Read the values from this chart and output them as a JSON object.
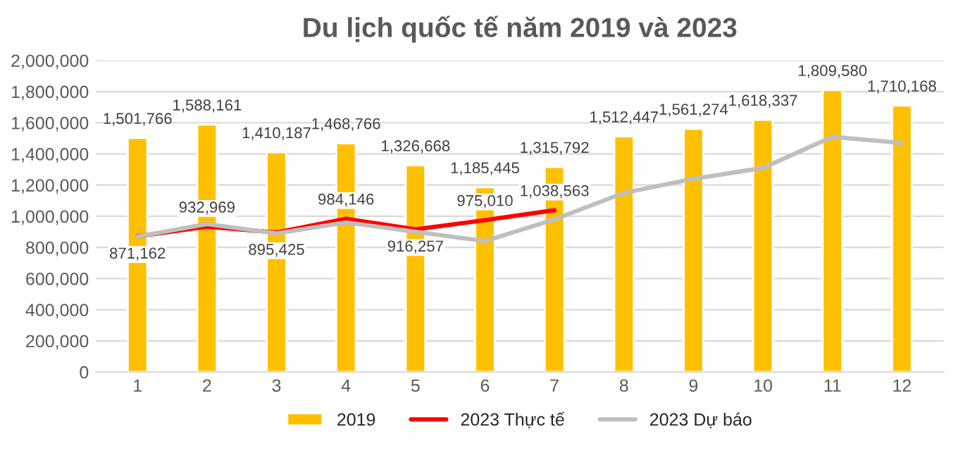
{
  "chart_data": {
    "type": "bar",
    "title": "Du lịch quốc tế năm 2019 và 2023",
    "categories": [
      "1",
      "2",
      "3",
      "4",
      "5",
      "6",
      "7",
      "8",
      "9",
      "10",
      "11",
      "12"
    ],
    "series": [
      {
        "name": "2019",
        "color": "#ffc000",
        "values": [
          1501766,
          1588161,
          1410187,
          1468766,
          1326668,
          1185445,
          1315792,
          1512447,
          1561274,
          1618337,
          1809580,
          1710168
        ],
        "value_labels": [
          "1,501,766",
          "1,588,161",
          "1,410,187",
          "1,468,766",
          "1,326,668",
          "1,185,445",
          "1,315,792",
          "1,512,447",
          "1,561,274",
          "1,618,337",
          "1,809,580",
          "1,710,168"
        ]
      },
      {
        "name": "2023 Thực tế",
        "type": "line",
        "color": "#ff0000",
        "values": [
          871162,
          932969,
          895425,
          984146,
          916257,
          975010,
          1038563,
          null,
          null,
          null,
          null,
          null
        ],
        "value_labels": [
          "871,162",
          "932,969",
          "895,425",
          "984,146",
          "916,257",
          "975,010",
          "1,038,563",
          null,
          null,
          null,
          null,
          null
        ]
      },
      {
        "name": "2023 Dự báo",
        "type": "line",
        "color": "#bfbfbf",
        "values": [
          870000,
          950000,
          890000,
          960000,
          900000,
          840000,
          980000,
          1150000,
          1240000,
          1310000,
          1510000,
          1470000
        ]
      }
    ],
    "ylim": [
      0,
      2000000
    ],
    "yticks": [
      {
        "value": 0,
        "label": "0"
      },
      {
        "value": 200000,
        "label": "200,000"
      },
      {
        "value": 400000,
        "label": "400,000"
      },
      {
        "value": 600000,
        "label": "600,000"
      },
      {
        "value": 800000,
        "label": "800,000"
      },
      {
        "value": 1000000,
        "label": "1,000,000"
      },
      {
        "value": 1200000,
        "label": "1,200,000"
      },
      {
        "value": 1400000,
        "label": "1,400,000"
      },
      {
        "value": 1600000,
        "label": "1,600,000"
      },
      {
        "value": 1800000,
        "label": "1,800,000"
      },
      {
        "value": 2000000,
        "label": "2,000,000"
      }
    ],
    "grid": "y",
    "legend": "bottom",
    "line_style": "solid",
    "marker": "none"
  }
}
